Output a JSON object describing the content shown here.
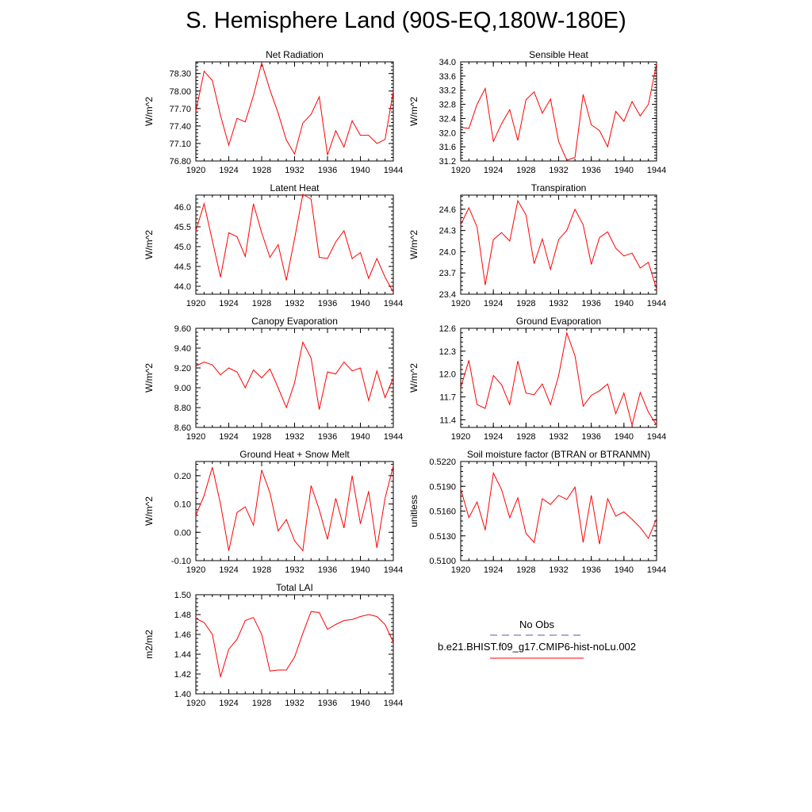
{
  "page": {
    "title": "S. Hemisphere Land (90S-EQ,180W-180E)"
  },
  "legend": {
    "obs_label": "No Obs",
    "obs_color": "#5a5aa8",
    "model_label": "b.e21.BHIST.f09_g17.CMIP6-hist-noLu.002",
    "model_color": "#ff0000"
  },
  "chart_data": [
    {
      "type": "line",
      "title": "Net Radiation",
      "ylabel": "W/m^2",
      "xlim": [
        1920,
        1944
      ],
      "ylim": [
        76.8,
        78.5
      ],
      "xticks": [
        "1920",
        "1924",
        "1928",
        "1932",
        "1936",
        "1940",
        "1944"
      ],
      "yticks": [
        "76.80",
        "77.10",
        "77.40",
        "77.70",
        "78.00",
        "78.30"
      ],
      "x": [
        1920,
        1921,
        1922,
        1923,
        1924,
        1925,
        1926,
        1927,
        1928,
        1929,
        1930,
        1931,
        1932,
        1933,
        1934,
        1935,
        1936,
        1937,
        1938,
        1939,
        1940,
        1941,
        1942,
        1943,
        1944
      ],
      "series": [
        {
          "values": [
            77.65,
            78.34,
            78.18,
            77.58,
            77.07,
            77.53,
            77.47,
            77.92,
            78.48,
            78.02,
            77.62,
            77.16,
            76.92,
            77.45,
            77.6,
            77.9,
            76.9,
            77.32,
            77.04,
            77.49,
            77.24,
            77.24,
            77.1,
            77.17,
            78.0
          ]
        }
      ]
    },
    {
      "type": "line",
      "title": "Sensible Heat",
      "ylabel": "W/m^2",
      "xlim": [
        1920,
        1944
      ],
      "ylim": [
        31.2,
        34.0
      ],
      "xticks": [
        "1920",
        "1924",
        "1928",
        "1932",
        "1936",
        "1940",
        "1944"
      ],
      "yticks": [
        "31.2",
        "31.6",
        "32.0",
        "32.4",
        "32.8",
        "33.2",
        "33.6",
        "34.0"
      ],
      "x": [
        1920,
        1921,
        1922,
        1923,
        1924,
        1925,
        1926,
        1927,
        1928,
        1929,
        1930,
        1931,
        1932,
        1933,
        1934,
        1935,
        1936,
        1937,
        1938,
        1939,
        1940,
        1941,
        1942,
        1943,
        1944
      ],
      "series": [
        {
          "values": [
            32.15,
            32.12,
            32.8,
            33.25,
            31.75,
            32.25,
            32.65,
            31.78,
            32.93,
            33.15,
            32.55,
            32.95,
            31.75,
            31.22,
            31.3,
            33.08,
            32.22,
            32.06,
            31.6,
            32.6,
            32.32,
            32.88,
            32.47,
            32.8,
            33.95
          ]
        }
      ]
    },
    {
      "type": "line",
      "title": "Latent Heat",
      "ylabel": "W/m^2",
      "xlim": [
        1920,
        1944
      ],
      "ylim": [
        43.8,
        46.3
      ],
      "xticks": [
        "1920",
        "1924",
        "1928",
        "1932",
        "1936",
        "1940",
        "1944"
      ],
      "yticks": [
        "44.0",
        "44.5",
        "45.0",
        "45.5",
        "46.0"
      ],
      "x": [
        1920,
        1921,
        1922,
        1923,
        1924,
        1925,
        1926,
        1927,
        1928,
        1929,
        1930,
        1931,
        1932,
        1933,
        1934,
        1935,
        1936,
        1937,
        1938,
        1939,
        1940,
        1941,
        1942,
        1943,
        1944
      ],
      "series": [
        {
          "values": [
            45.4,
            46.08,
            45.15,
            44.23,
            45.35,
            45.25,
            44.75,
            46.08,
            45.35,
            44.73,
            45.05,
            44.15,
            45.2,
            46.32,
            46.2,
            44.73,
            44.7,
            45.12,
            45.4,
            44.7,
            44.85,
            44.2,
            44.7,
            44.23,
            43.85
          ]
        }
      ]
    },
    {
      "type": "line",
      "title": "Transpiration",
      "ylabel": "W/m^2",
      "xlim": [
        1920,
        1944
      ],
      "ylim": [
        23.4,
        24.8
      ],
      "xticks": [
        "1920",
        "1924",
        "1928",
        "1932",
        "1936",
        "1940",
        "1944"
      ],
      "yticks": [
        "23.4",
        "23.7",
        "24.0",
        "24.3",
        "24.6"
      ],
      "x": [
        1920,
        1921,
        1922,
        1923,
        1924,
        1925,
        1926,
        1927,
        1928,
        1929,
        1930,
        1931,
        1932,
        1933,
        1934,
        1935,
        1936,
        1937,
        1938,
        1939,
        1940,
        1941,
        1942,
        1943,
        1944
      ],
      "series": [
        {
          "values": [
            24.38,
            24.62,
            24.35,
            23.53,
            24.17,
            24.27,
            24.15,
            24.72,
            24.52,
            23.83,
            24.18,
            23.75,
            24.17,
            24.3,
            24.6,
            24.38,
            23.82,
            24.2,
            24.28,
            24.05,
            23.94,
            23.98,
            23.77,
            23.85,
            23.47
          ]
        }
      ]
    },
    {
      "type": "line",
      "title": "Canopy Evaporation",
      "ylabel": "W/m^2",
      "xlim": [
        1920,
        1944
      ],
      "ylim": [
        8.6,
        9.6
      ],
      "xticks": [
        "1920",
        "1924",
        "1928",
        "1932",
        "1936",
        "1940",
        "1944"
      ],
      "yticks": [
        "8.60",
        "8.80",
        "9.00",
        "9.20",
        "9.40",
        "9.60"
      ],
      "x": [
        1920,
        1921,
        1922,
        1923,
        1924,
        1925,
        1926,
        1927,
        1928,
        1929,
        1930,
        1931,
        1932,
        1933,
        1934,
        1935,
        1936,
        1937,
        1938,
        1939,
        1940,
        1941,
        1942,
        1943,
        1944
      ],
      "series": [
        {
          "values": [
            9.22,
            9.26,
            9.23,
            9.13,
            9.2,
            9.16,
            9.0,
            9.18,
            9.1,
            9.19,
            9.0,
            8.8,
            9.05,
            9.46,
            9.3,
            8.78,
            9.16,
            9.14,
            9.26,
            9.17,
            9.2,
            8.87,
            9.17,
            8.9,
            9.1
          ]
        }
      ]
    },
    {
      "type": "line",
      "title": "Ground Evaporation",
      "ylabel": "W/m^2",
      "xlim": [
        1920,
        1944
      ],
      "ylim": [
        11.3,
        12.6
      ],
      "xticks": [
        "1920",
        "1924",
        "1928",
        "1932",
        "1936",
        "1940",
        "1944"
      ],
      "yticks": [
        "11.4",
        "11.7",
        "12.0",
        "12.3",
        "12.6"
      ],
      "x": [
        1920,
        1921,
        1922,
        1923,
        1924,
        1925,
        1926,
        1927,
        1928,
        1929,
        1930,
        1931,
        1932,
        1933,
        1934,
        1935,
        1936,
        1937,
        1938,
        1939,
        1940,
        1941,
        1942,
        1943,
        1944
      ],
      "series": [
        {
          "values": [
            11.82,
            12.18,
            11.6,
            11.55,
            11.98,
            11.86,
            11.6,
            12.17,
            11.75,
            11.73,
            11.87,
            11.6,
            11.98,
            12.54,
            12.24,
            11.58,
            11.72,
            11.78,
            11.87,
            11.48,
            11.75,
            11.33,
            11.76,
            11.5,
            11.33
          ]
        }
      ]
    },
    {
      "type": "line",
      "title": "Ground Heat + Snow Melt",
      "ylabel": "W/m^2",
      "xlim": [
        1920,
        1944
      ],
      "ylim": [
        -0.1,
        0.25
      ],
      "xticks": [
        "1920",
        "1924",
        "1928",
        "1932",
        "1936",
        "1940",
        "1944"
      ],
      "yticks": [
        "-0.10",
        "0.00",
        "0.10",
        "0.20"
      ],
      "x": [
        1920,
        1921,
        1922,
        1923,
        1924,
        1925,
        1926,
        1927,
        1928,
        1929,
        1930,
        1931,
        1932,
        1933,
        1934,
        1935,
        1936,
        1937,
        1938,
        1939,
        1940,
        1941,
        1942,
        1943,
        1944
      ],
      "series": [
        {
          "values": [
            0.06,
            0.13,
            0.23,
            0.1,
            -0.065,
            0.07,
            0.09,
            0.025,
            0.22,
            0.14,
            0.005,
            0.045,
            -0.03,
            -0.065,
            0.165,
            0.08,
            -0.025,
            0.12,
            0.015,
            0.2,
            0.03,
            0.145,
            -0.055,
            0.12,
            0.235
          ]
        }
      ]
    },
    {
      "type": "line",
      "title": "Soil moisture factor (BTRAN or BTRANMN)",
      "ylabel": "unitless",
      "xlim": [
        1920,
        1944
      ],
      "ylim": [
        0.51,
        0.522
      ],
      "xticks": [
        "1920",
        "1924",
        "1928",
        "1932",
        "1936",
        "1940",
        "1944"
      ],
      "yticks": [
        "0.5100",
        "0.5130",
        "0.5160",
        "0.5190",
        "0.5220"
      ],
      "x": [
        1920,
        1921,
        1922,
        1923,
        1924,
        1925,
        1926,
        1927,
        1928,
        1929,
        1930,
        1931,
        1932,
        1933,
        1934,
        1935,
        1936,
        1937,
        1938,
        1939,
        1940,
        1941,
        1942,
        1943,
        1944
      ],
      "series": [
        {
          "values": [
            0.5187,
            0.5152,
            0.5171,
            0.5137,
            0.5206,
            0.5186,
            0.5152,
            0.5176,
            0.5133,
            0.5122,
            0.5175,
            0.5168,
            0.5179,
            0.5174,
            0.5189,
            0.5122,
            0.5179,
            0.512,
            0.5175,
            0.5154,
            0.5159,
            0.515,
            0.514,
            0.5127,
            0.5151
          ]
        }
      ]
    },
    {
      "type": "line",
      "title": "Total LAI",
      "ylabel": "m2/m2",
      "xlim": [
        1920,
        1944
      ],
      "ylim": [
        1.4,
        1.5
      ],
      "xticks": [
        "1920",
        "1924",
        "1928",
        "1932",
        "1936",
        "1940",
        "1944"
      ],
      "yticks": [
        "1.40",
        "1.42",
        "1.44",
        "1.46",
        "1.48",
        "1.50"
      ],
      "x": [
        1920,
        1921,
        1922,
        1923,
        1924,
        1925,
        1926,
        1927,
        1928,
        1929,
        1930,
        1931,
        1932,
        1933,
        1934,
        1935,
        1936,
        1937,
        1938,
        1939,
        1940,
        1941,
        1942,
        1943,
        1944
      ],
      "series": [
        {
          "values": [
            1.476,
            1.472,
            1.46,
            1.417,
            1.445,
            1.455,
            1.474,
            1.477,
            1.46,
            1.423,
            1.424,
            1.424,
            1.437,
            1.461,
            1.483,
            1.482,
            1.465,
            1.47,
            1.474,
            1.475,
            1.478,
            1.48,
            1.478,
            1.47,
            1.452
          ]
        }
      ]
    }
  ]
}
